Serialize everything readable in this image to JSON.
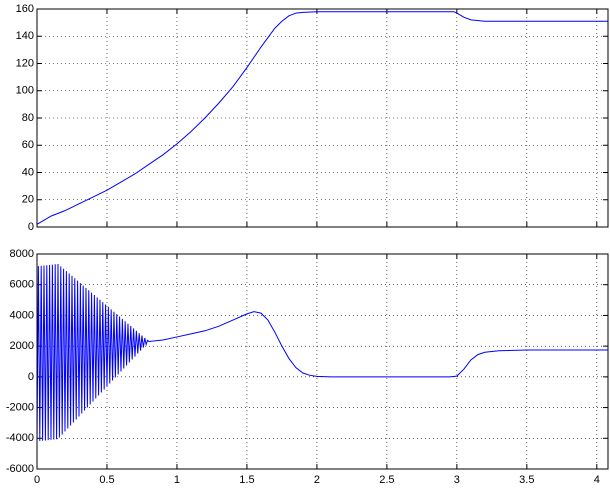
{
  "chart_data": [
    {
      "type": "line",
      "grid": true,
      "show_xtick_labels": false,
      "xlim": [
        0,
        4.08
      ],
      "ylim": [
        0,
        160
      ],
      "xticks": [
        0,
        0.5,
        1,
        1.5,
        2,
        2.5,
        3,
        3.5,
        4
      ],
      "yticks": [
        0,
        20,
        40,
        60,
        80,
        100,
        120,
        140,
        160
      ],
      "x": [
        0,
        0.05,
        0.1,
        0.2,
        0.3,
        0.4,
        0.5,
        0.6,
        0.7,
        0.8,
        0.9,
        1.0,
        1.1,
        1.2,
        1.3,
        1.4,
        1.5,
        1.6,
        1.7,
        1.75,
        1.8,
        1.85,
        1.9,
        2.0,
        2.5,
        2.98,
        3.0,
        3.05,
        3.1,
        3.2,
        3.4,
        3.7,
        4.08
      ],
      "series": [
        {
          "color": "#0000ff",
          "values": [
            2,
            5,
            8,
            12,
            17,
            22,
            27,
            33,
            39,
            46,
            53,
            61,
            70,
            80,
            91,
            103,
            117,
            132,
            146,
            151,
            155,
            157,
            157.5,
            158,
            158,
            158,
            157,
            154,
            152,
            151,
            151,
            151,
            151
          ]
        }
      ]
    },
    {
      "type": "line",
      "grid": true,
      "show_xtick_labels": true,
      "xlim": [
        0,
        4.08
      ],
      "ylim": [
        -6000,
        8000
      ],
      "xticks": [
        0,
        0.5,
        1,
        1.5,
        2,
        2.5,
        3,
        3.5,
        4
      ],
      "yticks": [
        -6000,
        -4000,
        -2000,
        0,
        2000,
        4000,
        6000,
        8000
      ],
      "x": [
        0,
        0.01,
        0.02,
        0.03,
        0.04,
        0.05,
        0.06,
        0.07,
        0.08,
        0.09,
        0.1,
        0.11,
        0.12,
        0.13,
        0.14,
        0.15,
        0.16,
        0.17,
        0.18,
        0.19,
        0.2,
        0.21,
        0.22,
        0.23,
        0.24,
        0.25,
        0.26,
        0.27,
        0.28,
        0.29,
        0.3,
        0.31,
        0.32,
        0.33,
        0.34,
        0.35,
        0.36,
        0.37,
        0.38,
        0.39,
        0.4,
        0.41,
        0.42,
        0.43,
        0.44,
        0.45,
        0.46,
        0.47,
        0.48,
        0.49,
        0.5,
        0.51,
        0.52,
        0.53,
        0.54,
        0.55,
        0.56,
        0.57,
        0.58,
        0.59,
        0.6,
        0.61,
        0.62,
        0.63,
        0.64,
        0.65,
        0.66,
        0.67,
        0.68,
        0.69,
        0.7,
        0.71,
        0.72,
        0.73,
        0.74,
        0.75,
        0.76,
        0.77,
        0.78,
        0.79,
        0.8,
        0.9,
        1.0,
        1.1,
        1.2,
        1.3,
        1.4,
        1.5,
        1.55,
        1.6,
        1.65,
        1.7,
        1.75,
        1.8,
        1.85,
        1.9,
        1.95,
        2.0,
        2.1,
        2.5,
        2.95,
        3.0,
        3.05,
        3.1,
        3.15,
        3.2,
        3.3,
        3.5,
        4.08
      ],
      "series": [
        {
          "color": "#0000ff",
          "values": [
            -4200,
            7210,
            -4180,
            7230,
            -4160,
            7250,
            -4140,
            7270,
            -4120,
            7290,
            -4100,
            7310,
            -4080,
            7330,
            -4060,
            7350,
            -3952,
            7195,
            -3757,
            7039,
            -3561,
            6884,
            -3366,
            6728,
            -3170,
            6573,
            -2975,
            6417,
            -2779,
            6262,
            -2584,
            6106,
            -2388,
            5951,
            -2193,
            5795,
            -1997,
            5640,
            -1802,
            5484,
            -1608,
            5330,
            -1412,
            5174,
            -1217,
            5019,
            -1021,
            4863,
            -826,
            4708,
            -630,
            4553,
            -435,
            4397,
            -239,
            4242,
            -44,
            4086,
            151,
            3931,
            347,
            3776,
            542,
            3620,
            737,
            3465,
            933,
            3310,
            1128,
            3154,
            1323,
            2999,
            1519,
            2844,
            1714,
            2688,
            1909,
            2533,
            2105,
            2378,
            2300,
            2400,
            2600,
            2800,
            3000,
            3300,
            3700,
            4100,
            4250,
            4150,
            3700,
            2900,
            2000,
            1200,
            600,
            250,
            100,
            30,
            0,
            0,
            0,
            50,
            500,
            1100,
            1450,
            1600,
            1700,
            1750,
            1750
          ]
        }
      ]
    }
  ]
}
